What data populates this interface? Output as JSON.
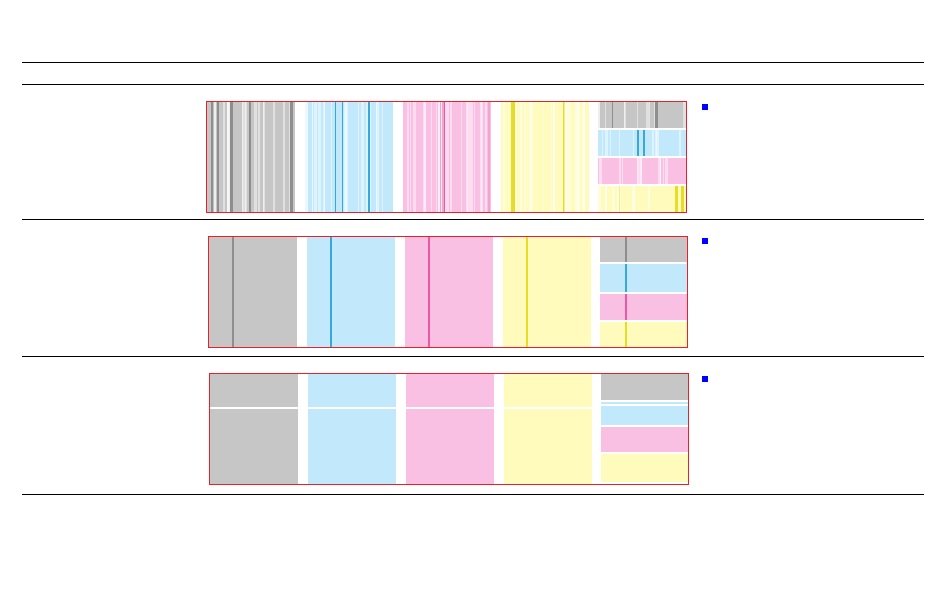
{
  "colors": {
    "border": "#e8202a",
    "rule": "#000000",
    "bullet": "#0000ff",
    "gray": "#c6c6c6",
    "cyan": "#c2e9fb",
    "magenta": "#f9c0e3",
    "yellow": "#fefbbd",
    "gray_line": "#8e8e8e",
    "cyan_line": "#39a8d8",
    "magenta_line": "#e85aa6",
    "yellow_line": "#e8dc2a"
  },
  "panels": [
    {
      "name": "panel-1-vertical-streaks",
      "pattern": "streaks"
    },
    {
      "name": "panel-2-single-vertical-line",
      "pattern": "vline"
    },
    {
      "name": "panel-3-horizontal-band",
      "pattern": "hband"
    }
  ],
  "bullets": [
    {
      "name": "bullet-1",
      "icon": "square-bullet-icon",
      "text": ""
    },
    {
      "name": "bullet-2",
      "icon": "square-bullet-icon",
      "text": ""
    },
    {
      "name": "bullet-3",
      "icon": "square-bullet-icon",
      "text": ""
    }
  ]
}
